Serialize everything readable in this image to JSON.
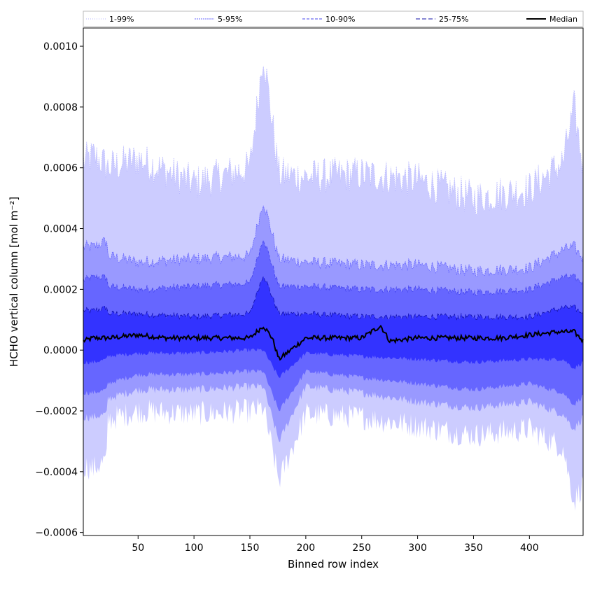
{
  "chart_data": {
    "type": "area",
    "xlabel": "Binned row index",
    "ylabel": "HCHO vertical column [mol m⁻²]",
    "xlim": [
      1,
      448
    ],
    "ylim": [
      -0.00061,
      0.00106
    ],
    "x_ticks": [
      50,
      100,
      150,
      200,
      250,
      300,
      350,
      400
    ],
    "y_ticks": [
      {
        "value": -0.0006,
        "label": "−0.0006"
      },
      {
        "value": -0.0004,
        "label": "−0.0004"
      },
      {
        "value": -0.0002,
        "label": "−0.0002"
      },
      {
        "value": 0.0,
        "label": "0.0000"
      },
      {
        "value": 0.0002,
        "label": "0.0002"
      },
      {
        "value": 0.0004,
        "label": "0.0004"
      },
      {
        "value": 0.0006,
        "label": "0.0006"
      },
      {
        "value": 0.0008,
        "label": "0.0008"
      },
      {
        "value": 0.001,
        "label": "0.0010"
      }
    ],
    "grid": false,
    "legend_position": "top",
    "x_range": [
      1,
      448
    ],
    "series": [
      {
        "name": "1-99%",
        "color": "#ccccff",
        "line_color": "#b4b4ff",
        "dash": "1,2",
        "x": [
          1,
          10,
          22,
          23,
          50,
          100,
          150,
          162,
          176,
          200,
          250,
          300,
          350,
          400,
          430,
          440,
          448
        ],
        "upper": [
          0.00062,
          0.00064,
          0.00061,
          0.0006,
          0.00063,
          0.00055,
          0.0006,
          0.00098,
          0.00058,
          0.00057,
          0.00058,
          0.00056,
          0.0005,
          0.00053,
          0.00062,
          0.0008,
          0.0006
        ],
        "lower": [
          -0.00038,
          -0.00039,
          -0.00036,
          -0.00023,
          -0.0002,
          -0.00021,
          -0.0002,
          -0.00019,
          -0.00043,
          -0.00021,
          -0.00022,
          -0.00025,
          -0.00028,
          -0.00026,
          -0.00032,
          -0.0005,
          -0.00044
        ]
      },
      {
        "name": "5-95%",
        "color": "#9999ff",
        "line_color": "#6666ff",
        "dash": "2,1",
        "x": [
          1,
          10,
          22,
          23,
          50,
          100,
          150,
          162,
          176,
          200,
          250,
          300,
          350,
          400,
          430,
          440,
          448
        ],
        "upper": [
          0.00034,
          0.00034,
          0.00036,
          0.00031,
          0.00029,
          0.0003,
          0.00031,
          0.00049,
          0.0003,
          0.00029,
          0.00028,
          0.00028,
          0.00026,
          0.00027,
          0.00033,
          0.00034,
          0.0003
        ],
        "lower": [
          -0.00022,
          -0.00022,
          -0.00021,
          -0.00016,
          -0.00013,
          -0.00013,
          -0.00012,
          -0.00012,
          -0.0003,
          -0.00012,
          -0.00014,
          -0.00017,
          -0.00019,
          -0.00017,
          -0.00021,
          -0.00026,
          -0.00022
        ]
      },
      {
        "name": "10-90%",
        "color": "#6666ff",
        "line_color": "#4444ee",
        "dash": "4,2",
        "x": [
          1,
          10,
          22,
          23,
          50,
          100,
          150,
          162,
          176,
          200,
          250,
          300,
          350,
          400,
          430,
          440,
          448
        ],
        "upper": [
          0.00023,
          0.00024,
          0.00024,
          0.00021,
          0.0002,
          0.00021,
          0.00022,
          0.00037,
          0.00021,
          0.00021,
          0.0002,
          0.0002,
          0.00019,
          0.0002,
          0.00024,
          0.00024,
          0.00022
        ],
        "lower": [
          -0.00014,
          -0.00014,
          -0.00013,
          -0.00011,
          -8e-05,
          -8e-05,
          -7e-05,
          -7e-05,
          -0.0002,
          -7e-05,
          -9e-05,
          -0.00011,
          -0.00013,
          -0.00011,
          -0.00014,
          -0.00018,
          -0.00015
        ]
      },
      {
        "name": "25-75%",
        "color": "#3333ff",
        "line_color": "#1111aa",
        "dash": "6,3",
        "x": [
          1,
          10,
          22,
          23,
          50,
          100,
          150,
          162,
          176,
          200,
          250,
          300,
          350,
          400,
          430,
          440,
          448
        ],
        "upper": [
          0.00013,
          0.00013,
          0.00014,
          0.00012,
          0.00012,
          0.00011,
          0.00012,
          0.00025,
          0.00012,
          0.00012,
          0.00011,
          0.00011,
          0.00011,
          0.00011,
          0.00014,
          0.00014,
          0.00012
        ],
        "lower": [
          -4e-05,
          -4e-05,
          -3e-05,
          -2e-05,
          -1e-05,
          -1e-05,
          0.0,
          0.0,
          -9e-05,
          -1e-05,
          -2e-05,
          -3e-05,
          -4e-05,
          -3e-05,
          -3e-05,
          -6e-05,
          -4e-05
        ]
      },
      {
        "name": "Median",
        "color": "#000000",
        "line_color": "#000000",
        "dash": "",
        "x": [
          1,
          10,
          25,
          50,
          75,
          100,
          125,
          150,
          162,
          170,
          176,
          200,
          225,
          250,
          267,
          275,
          300,
          325,
          350,
          375,
          400,
          425,
          440,
          448
        ],
        "values": [
          3e-05,
          4e-05,
          4e-05,
          5e-05,
          4e-05,
          4e-05,
          4e-05,
          4e-05,
          8e-05,
          4e-05,
          -3e-05,
          4e-05,
          4e-05,
          4e-05,
          8e-05,
          3e-05,
          4e-05,
          4e-05,
          4e-05,
          4e-05,
          5e-05,
          6e-05,
          6e-05,
          3e-05
        ]
      }
    ]
  }
}
